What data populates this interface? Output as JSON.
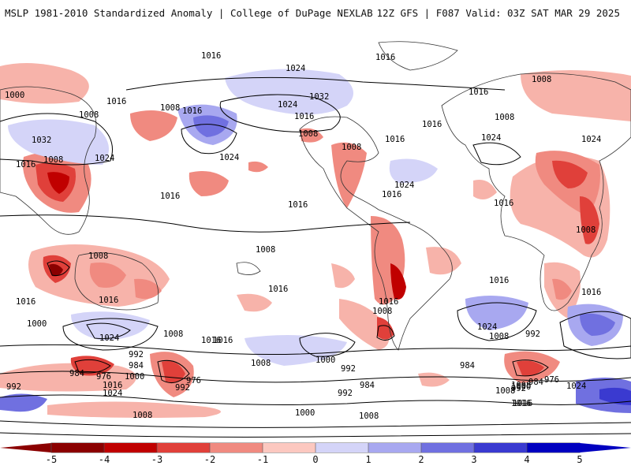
{
  "header": {
    "left_title": "MSLP 1981-2010 Standardized Anomaly | College of DuPage NEXLAB",
    "right_title": "12Z GFS | F087 Valid: 03Z SAT MAR 29 2025"
  },
  "map": {
    "isobar_labels": [
      "1016",
      "1016",
      "1024",
      "1000",
      "1016",
      "1008",
      "1032",
      "1008",
      "1016",
      "1024",
      "1024",
      "1008",
      "1016",
      "1024",
      "1008",
      "1016",
      "1008",
      "1032",
      "1016",
      "1016",
      "1016",
      "1024",
      "1016",
      "1008",
      "1024",
      "1016",
      "1024",
      "1008",
      "1008",
      "1016",
      "1016",
      "1008",
      "1008",
      "1016",
      "1016",
      "1016",
      "1008",
      "1016",
      "1000",
      "1024",
      "1008",
      "1016",
      "1016",
      "1024",
      "1008",
      "1016",
      "1008",
      "1000",
      "992",
      "984",
      "992",
      "984",
      "976",
      "1000",
      "1016",
      "1024",
      "976",
      "992",
      "1016",
      "1008",
      "984",
      "992",
      "992",
      "1000",
      "984",
      "976",
      "1024",
      "992",
      "1008",
      "1016",
      "1008",
      "1000",
      "1008",
      "984",
      "992",
      "1016"
    ]
  },
  "legend": {
    "ticks": [
      "-5",
      "-4",
      "-3",
      "-2",
      "-1",
      "0",
      "1",
      "2",
      "3",
      "4",
      "5"
    ],
    "colors": [
      "#8b0000",
      "#c00000",
      "#e0403a",
      "#f08a80",
      "#fcc8c0",
      "#ffffff",
      "#d4d4f8",
      "#a8a8f0",
      "#7070e0",
      "#3a3ad0",
      "#0000c0"
    ]
  }
}
